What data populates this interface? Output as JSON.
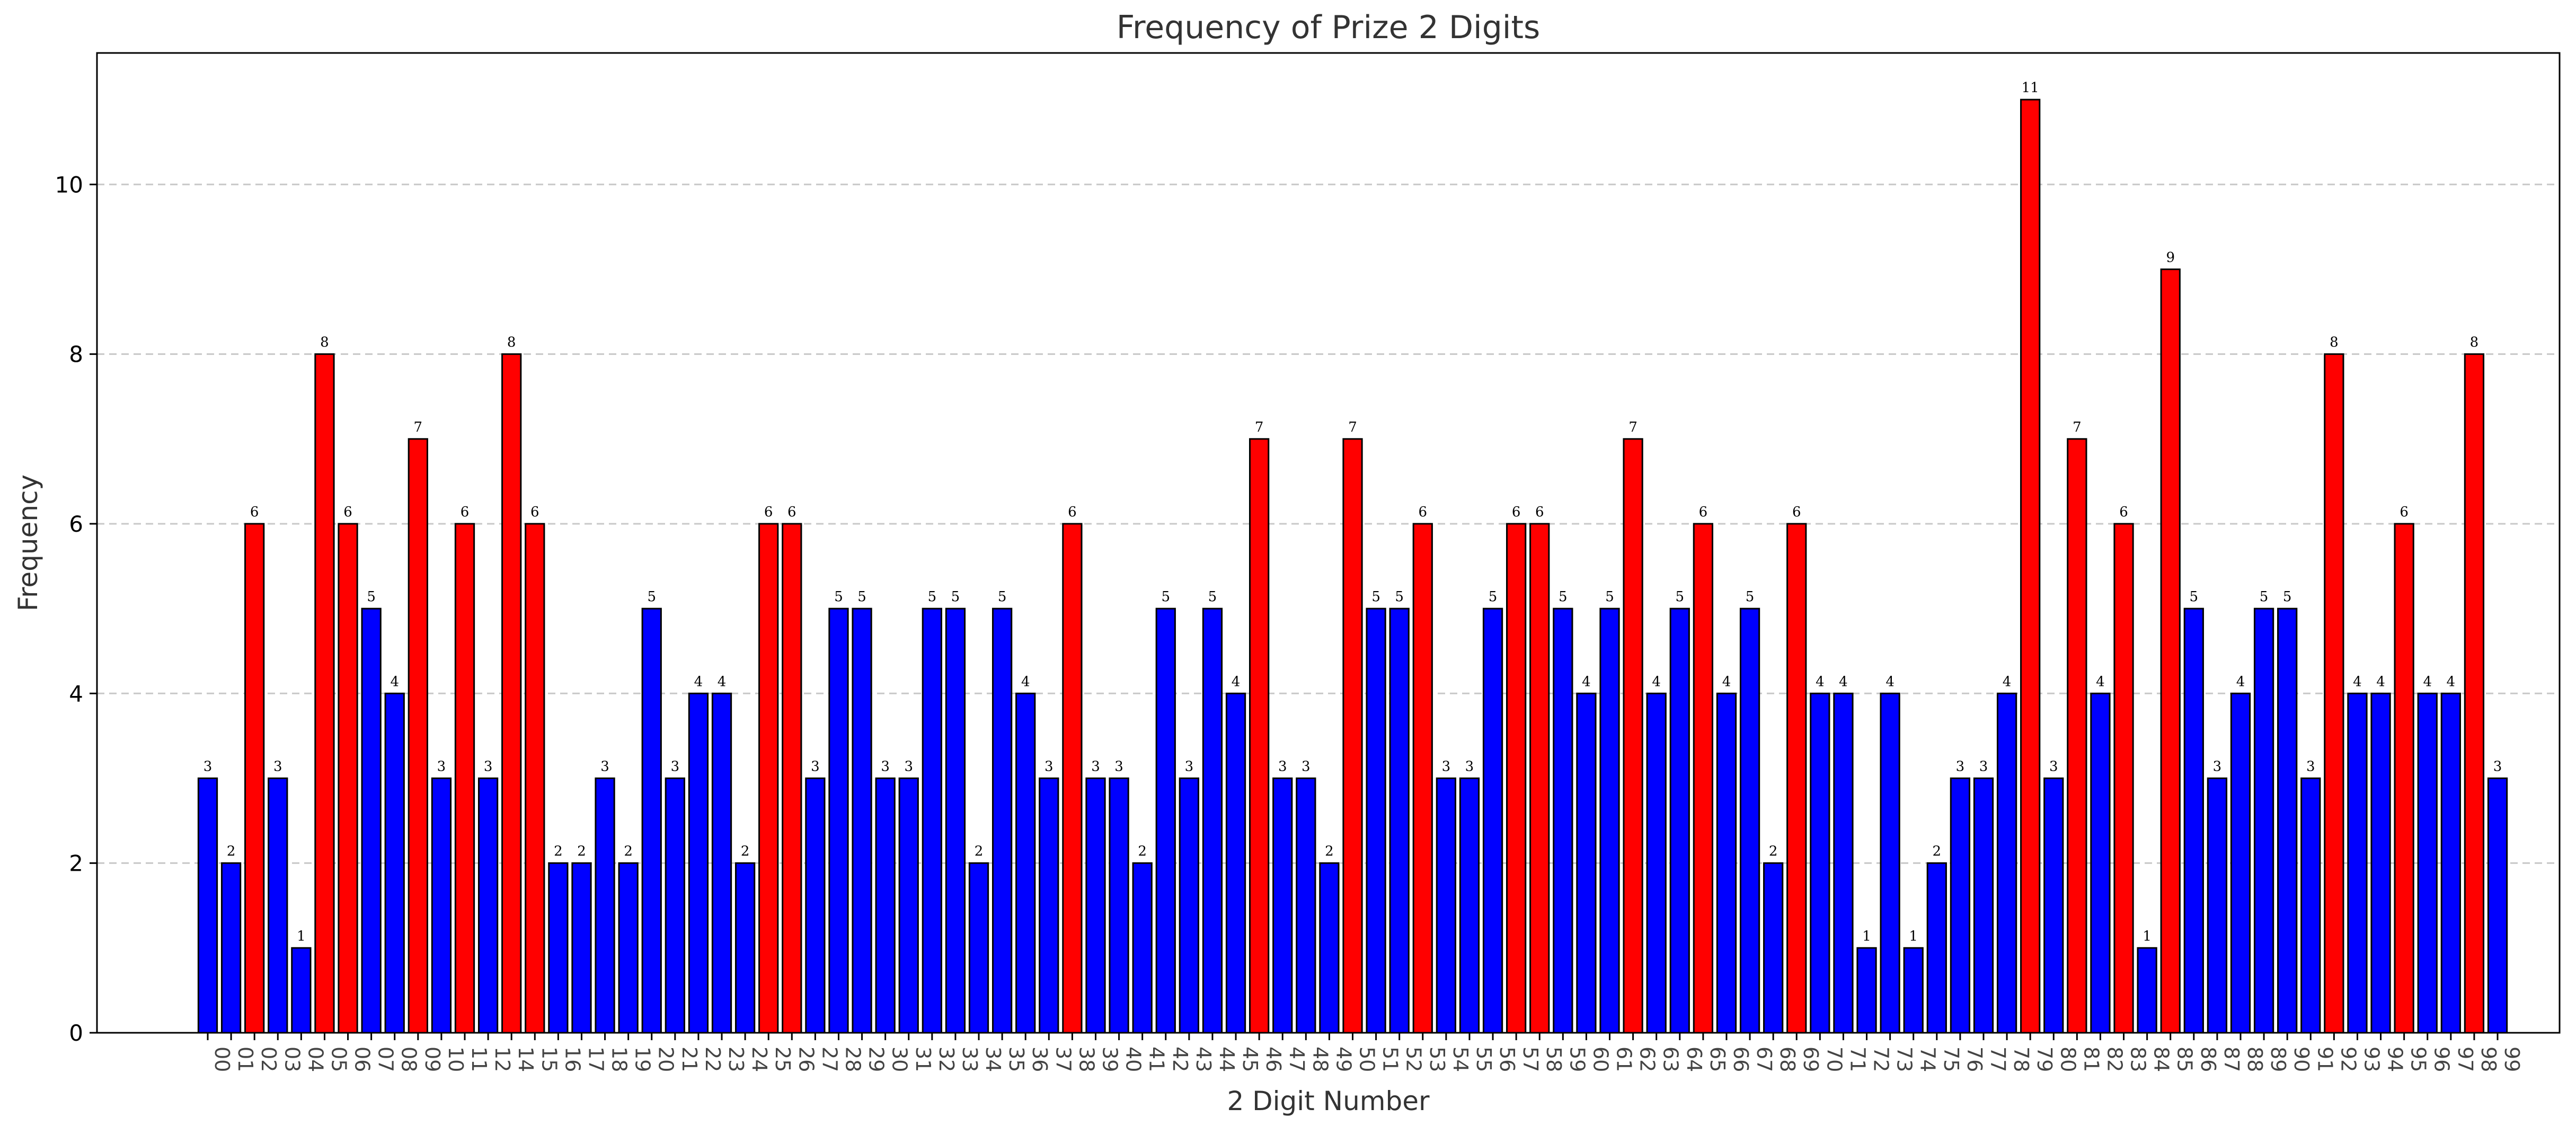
{
  "chart_data": {
    "type": "bar",
    "title": "Frequency of Prize 2 Digits",
    "xlabel": "2 Digit Number",
    "ylabel": "Frequency",
    "ylim": [
      0,
      11.55
    ],
    "yticks": [
      0,
      2,
      4,
      6,
      8,
      10
    ],
    "grid": "y-dashed",
    "legend": "none",
    "highlight_rule": "red when value >= 6, otherwise blue",
    "colors": {
      "base": "#0000ff",
      "highlight": "#ff0000",
      "edge": "#000000",
      "grid": "#c8c8c8"
    },
    "categories": [
      "00",
      "01",
      "02",
      "03",
      "04",
      "05",
      "06",
      "07",
      "08",
      "09",
      "10",
      "11",
      "12",
      "14",
      "15",
      "16",
      "17",
      "18",
      "19",
      "20",
      "21",
      "22",
      "23",
      "24",
      "25",
      "26",
      "27",
      "28",
      "29",
      "30",
      "31",
      "32",
      "33",
      "34",
      "35",
      "36",
      "37",
      "38",
      "39",
      "40",
      "41",
      "42",
      "43",
      "44",
      "45",
      "46",
      "47",
      "48",
      "49",
      "50",
      "51",
      "52",
      "53",
      "54",
      "55",
      "56",
      "57",
      "58",
      "59",
      "60",
      "61",
      "62",
      "63",
      "64",
      "65",
      "66",
      "67",
      "68",
      "69",
      "70",
      "71",
      "72",
      "73",
      "74",
      "75",
      "76",
      "77",
      "78",
      "79",
      "80",
      "81",
      "82",
      "83",
      "84",
      "85",
      "86",
      "87",
      "88",
      "89",
      "90",
      "91",
      "92",
      "93",
      "94",
      "95",
      "96",
      "97",
      "98",
      "99"
    ],
    "values": [
      3,
      2,
      6,
      3,
      1,
      8,
      6,
      5,
      4,
      7,
      3,
      6,
      3,
      8,
      6,
      2,
      2,
      3,
      2,
      5,
      3,
      4,
      4,
      2,
      6,
      6,
      3,
      5,
      5,
      3,
      3,
      5,
      5,
      2,
      5,
      4,
      3,
      6,
      3,
      3,
      2,
      5,
      3,
      5,
      4,
      7,
      3,
      3,
      2,
      7,
      5,
      5,
      6,
      3,
      3,
      5,
      6,
      6,
      5,
      4,
      5,
      7,
      4,
      5,
      6,
      4,
      5,
      2,
      6,
      4,
      4,
      1,
      4,
      1,
      2,
      3,
      3,
      4,
      11,
      3,
      7,
      4,
      6,
      1,
      9,
      5,
      3,
      4,
      5,
      5,
      3,
      8,
      4,
      4,
      6,
      4,
      4,
      8,
      3
    ]
  }
}
